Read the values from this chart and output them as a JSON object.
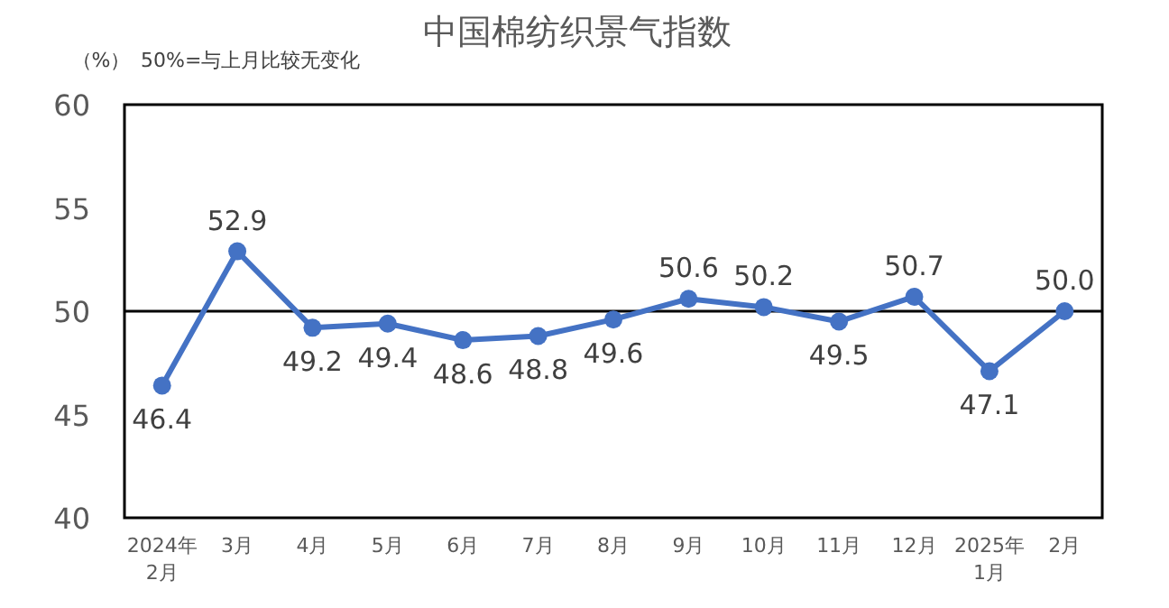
{
  "chart_data": {
    "type": "line",
    "title": "中国棉纺织景气指数",
    "subtitle": "50%=与上月比较无变化",
    "ylabel": "（%）",
    "categories": [
      "2024年\n2月",
      "3月",
      "4月",
      "5月",
      "6月",
      "7月",
      "8月",
      "9月",
      "10月",
      "11月",
      "12月",
      "2025年\n1月",
      "2月"
    ],
    "series": [
      {
        "color": "#4472c4",
        "values": [
          46.4,
          52.9,
          49.2,
          49.4,
          48.6,
          48.8,
          49.6,
          50.6,
          50.2,
          49.5,
          50.7,
          47.1,
          50.0
        ],
        "value_labels": [
          "46.4",
          "52.9",
          "49.2",
          "49.4",
          "48.6",
          "48.8",
          "49.6",
          "50.6",
          "50.2",
          "49.5",
          "50.7",
          "47.1",
          "50.0"
        ]
      }
    ],
    "ylim": [
      40,
      60
    ],
    "yticks": [
      40,
      45,
      50,
      55,
      60
    ],
    "ref_lines": [
      {
        "axis": "y",
        "value": 50,
        "color": "#000000"
      }
    ],
    "marker": "circle",
    "line_style": "solid"
  }
}
